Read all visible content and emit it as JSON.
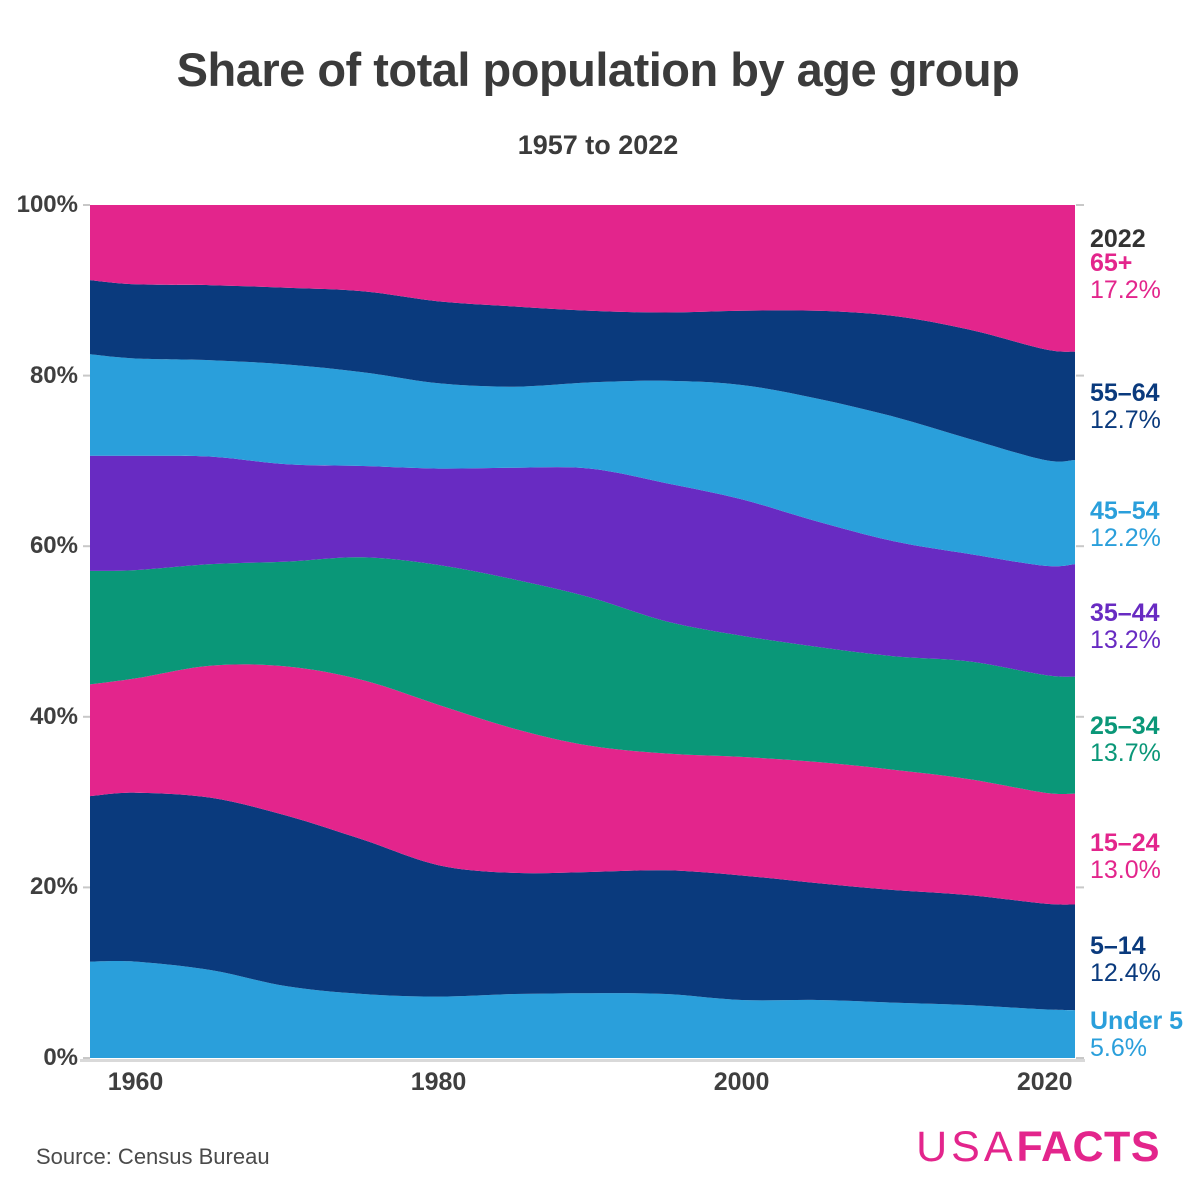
{
  "chart_data": {
    "type": "area",
    "stacked": true,
    "percent_normalized": true,
    "title": "Share of total population by age group",
    "subtitle": "1957 to 2022",
    "legend_position": "right",
    "grid": false,
    "x_range": [
      1957,
      2022
    ],
    "y_range": [
      0,
      100
    ],
    "y_tick_labels_top_down": [
      "100%",
      "80%",
      "60%",
      "40%",
      "20%",
      "0%"
    ],
    "x_tick_labels": [
      "1960",
      "1980",
      "2000",
      "2020"
    ],
    "x_tick_years": [
      1960,
      1980,
      2000,
      2020
    ],
    "x": [
      1957,
      1960,
      1965,
      1970,
      1975,
      1980,
      1985,
      1990,
      1995,
      2000,
      2005,
      2010,
      2015,
      2020,
      2022
    ],
    "series_bottom_to_top": [
      {
        "name": "Under 5",
        "color": "#2a9fdb",
        "values": [
          11.3,
          11.3,
          10.3,
          8.4,
          7.5,
          7.2,
          7.5,
          7.6,
          7.5,
          6.8,
          6.8,
          6.5,
          6.2,
          5.7,
          5.6
        ]
      },
      {
        "name": "5–14",
        "color": "#0a3a7d",
        "values": [
          19.4,
          19.8,
          20.2,
          20.0,
          18.1,
          15.4,
          14.2,
          14.2,
          14.5,
          14.6,
          13.7,
          13.2,
          12.9,
          12.4,
          12.4
        ]
      },
      {
        "name": "15–24",
        "color": "#e3258c",
        "values": [
          13.1,
          13.4,
          15.5,
          17.5,
          18.7,
          18.8,
          16.9,
          14.8,
          13.7,
          13.9,
          14.2,
          14.1,
          13.6,
          13.0,
          13.0
        ]
      },
      {
        "name": "25–34",
        "color": "#0a9778",
        "values": [
          13.3,
          12.7,
          11.9,
          12.3,
          14.4,
          16.4,
          17.5,
          17.4,
          15.5,
          14.2,
          13.5,
          13.3,
          13.8,
          13.8,
          13.7
        ]
      },
      {
        "name": "35–44",
        "color": "#682bc2",
        "values": [
          13.5,
          13.4,
          12.6,
          11.4,
          10.7,
          11.3,
          13.1,
          15.1,
          16.2,
          16.0,
          14.7,
          13.5,
          12.6,
          12.8,
          13.2
        ]
      },
      {
        "name": "45–54",
        "color": "#2a9fdb",
        "values": [
          11.9,
          11.4,
          11.3,
          11.7,
          11.0,
          10.0,
          9.5,
          10.1,
          12.0,
          13.4,
          14.4,
          14.6,
          13.5,
          12.4,
          12.2
        ]
      },
      {
        "name": "55–64",
        "color": "#0a3a7d",
        "values": [
          8.7,
          8.7,
          8.8,
          9.0,
          9.5,
          9.6,
          9.4,
          8.4,
          8.0,
          8.7,
          10.3,
          11.8,
          12.8,
          13.0,
          12.7
        ]
      },
      {
        "name": "65+",
        "color": "#e3258c",
        "values": [
          8.8,
          9.3,
          9.4,
          9.7,
          10.1,
          11.3,
          11.9,
          12.4,
          12.6,
          12.4,
          12.4,
          13.0,
          14.6,
          16.9,
          17.2
        ]
      }
    ],
    "right_labels": {
      "year": "2022",
      "year_color": "#333333",
      "entries": [
        {
          "group": "65+",
          "value": "17.2%",
          "color": "#e3258c"
        },
        {
          "group": "55–64",
          "value": "12.7%",
          "color": "#0a3a7d"
        },
        {
          "group": "45–54",
          "value": "12.2%",
          "color": "#2a9fdb"
        },
        {
          "group": "35–44",
          "value": "13.2%",
          "color": "#682bc2"
        },
        {
          "group": "25–34",
          "value": "13.7%",
          "color": "#0a9778"
        },
        {
          "group": "15–24",
          "value": "13.0%",
          "color": "#e3258c"
        },
        {
          "group": "5–14",
          "value": "12.4%",
          "color": "#0a3a7d"
        },
        {
          "group": "Under 5",
          "value": "5.6%",
          "color": "#2a9fdb"
        }
      ]
    },
    "axis_colors": {
      "tick": "#c8c8c8",
      "baseline": "#d9d9d9"
    }
  },
  "footer": {
    "source": "Source: Census Bureau",
    "brand_usa": "USA",
    "brand_facts": "FACTS",
    "brand_color": "#e3258c"
  }
}
